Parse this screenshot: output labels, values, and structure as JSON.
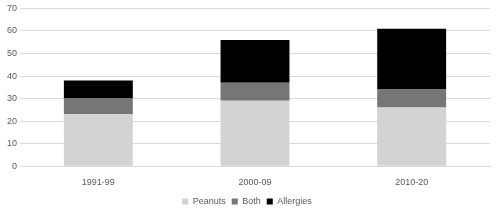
{
  "chart_data": {
    "type": "bar",
    "stacked": true,
    "grid": true,
    "legend": "bottom",
    "categories": [
      "1991-99",
      "2000-09",
      "2010-20"
    ],
    "series": [
      {
        "name": "Peanuts",
        "color": "#d3d3d3",
        "values": [
          23,
          29,
          26
        ]
      },
      {
        "name": "Both",
        "color": "#767676",
        "values": [
          7,
          8,
          8
        ]
      },
      {
        "name": "Allergies",
        "color": "#000000",
        "values": [
          8,
          19,
          27
        ]
      }
    ],
    "ylim": [
      0,
      70
    ],
    "yticks": [
      0,
      10,
      20,
      30,
      40,
      50,
      60,
      70
    ]
  }
}
